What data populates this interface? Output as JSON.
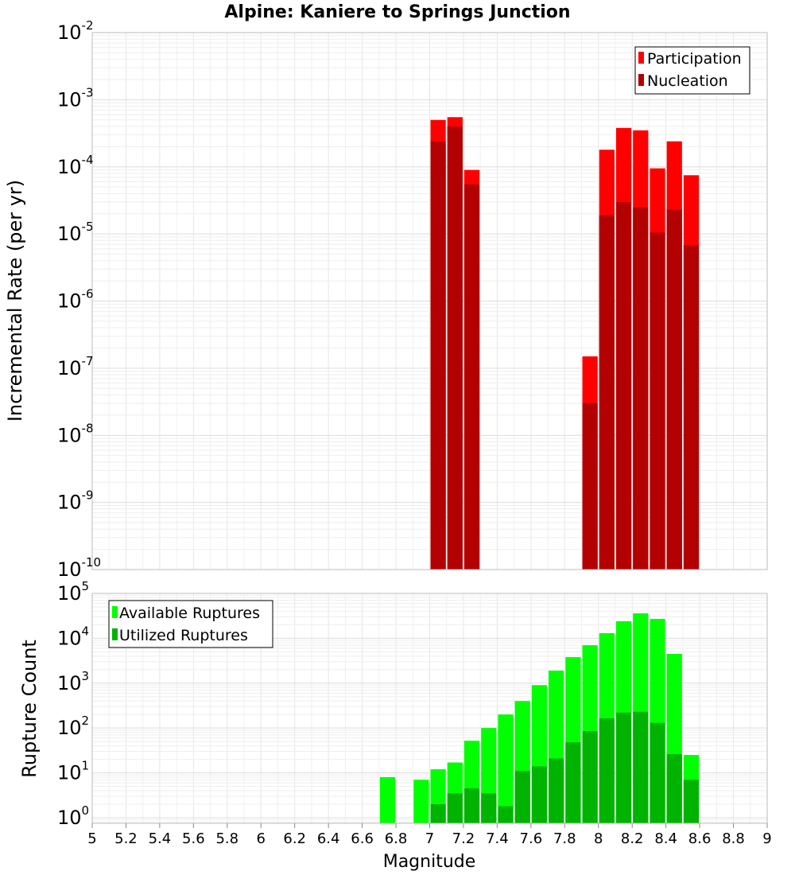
{
  "title": "Alpine: Kaniere to Springs Junction",
  "chart_data": [
    {
      "type": "bar",
      "title": "Alpine: Kaniere to Springs Junction",
      "ylabel": "Incremental Rate (per yr)",
      "xlabel": "",
      "yscale": "log",
      "ylim": [
        1e-10,
        0.01
      ],
      "xlim": [
        5,
        9
      ],
      "ytick_exponents": [
        -10,
        -9,
        -8,
        -7,
        -6,
        -5,
        -4,
        -3,
        -2
      ],
      "legend": {
        "placement": "top-right"
      },
      "grid": true,
      "x": [
        7.05,
        7.15,
        7.25,
        7.95,
        8.05,
        8.15,
        8.25,
        8.35,
        8.45,
        8.55
      ],
      "series": [
        {
          "name": "Participation",
          "color": "#ff0000",
          "values": [
            0.0005,
            0.00055,
            9e-05,
            1.5e-07,
            0.00018,
            0.00038,
            0.00035,
            9.5e-05,
            0.00024,
            7.5e-05
          ]
        },
        {
          "name": "Nucleation",
          "color": "#b30000",
          "values": [
            0.00024,
            0.0004,
            5.5e-05,
            3e-08,
            1.9e-05,
            3e-05,
            2.5e-05,
            1.05e-05,
            2.3e-05,
            6.8e-06
          ]
        }
      ]
    },
    {
      "type": "bar",
      "ylabel": "Rupture Count",
      "xlabel": "Magnitude",
      "yscale": "log",
      "ylim": [
        0.75,
        100000
      ],
      "xlim": [
        5,
        9
      ],
      "ytick_exponents": [
        0,
        1,
        2,
        3,
        4,
        5
      ],
      "xticks": [
        "5",
        "5.2",
        "5.4",
        "5.6",
        "5.8",
        "6",
        "6.2",
        "6.4",
        "6.6",
        "6.8",
        "7",
        "7.2",
        "7.4",
        "7.6",
        "7.8",
        "8",
        "8.2",
        "8.4",
        "8.6",
        "8.8",
        "9"
      ],
      "legend": {
        "placement": "top-left"
      },
      "grid": true,
      "x": [
        6.75,
        6.95,
        7.05,
        7.15,
        7.25,
        7.35,
        7.45,
        7.55,
        7.65,
        7.75,
        7.85,
        7.95,
        8.05,
        8.15,
        8.25,
        8.35,
        8.45,
        8.55
      ],
      "series": [
        {
          "name": "Available Ruptures",
          "color": "#00ff00",
          "values": [
            8,
            7,
            12,
            17,
            52,
            100,
            200,
            400,
            900,
            1900,
            3800,
            7000,
            13000,
            24000,
            36000,
            27000,
            4500,
            25
          ]
        },
        {
          "name": "Utilized Ruptures",
          "color": "#00b300",
          "values": [
            null,
            null,
            2,
            3.5,
            4.5,
            3.5,
            1.8,
            11,
            14,
            21,
            48,
            85,
            165,
            220,
            230,
            130,
            26,
            7
          ]
        }
      ]
    }
  ]
}
